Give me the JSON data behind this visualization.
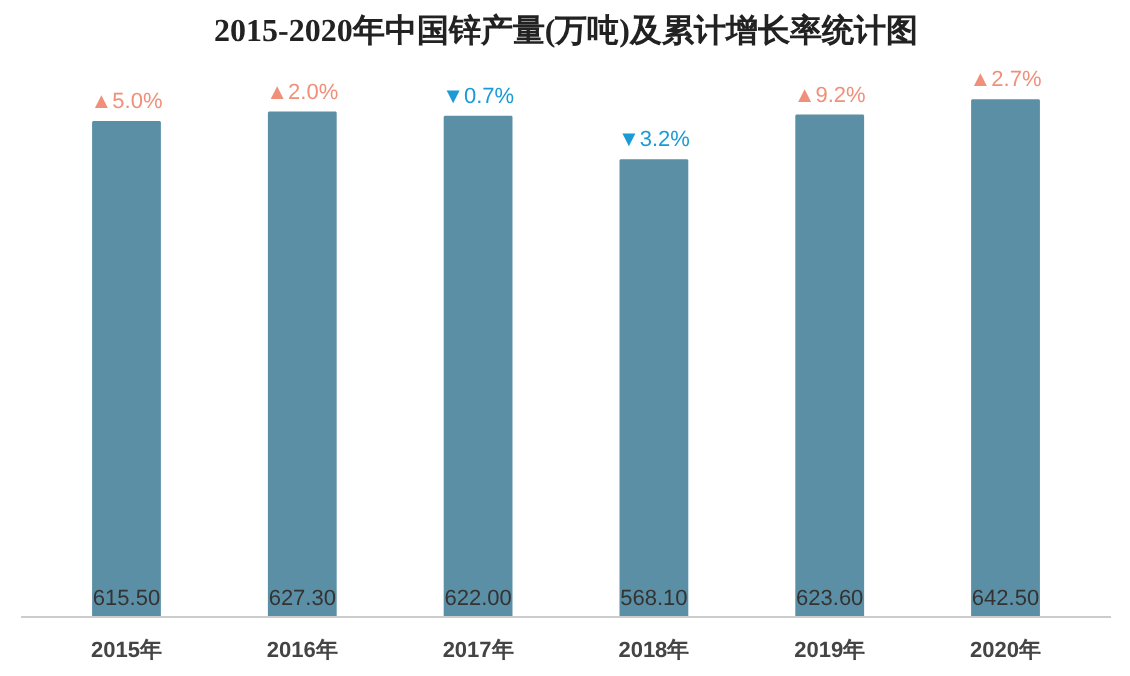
{
  "chart_data": {
    "type": "bar",
    "title": "2015-2020年中国锌产量(万吨)及累计增长率统计图",
    "categories": [
      "2015年",
      "2016年",
      "2017年",
      "2018年",
      "2019年",
      "2020年"
    ],
    "values": [
      615.5,
      627.3,
      622.0,
      568.1,
      623.6,
      642.5
    ],
    "value_labels": [
      "615.50",
      "627.30",
      "622.00",
      "568.10",
      "623.60",
      "642.50"
    ],
    "color": "#5b8fa6",
    "grid": false,
    "annotations": [
      {
        "text": "▲5.0%",
        "x": "2015年",
        "y": 615.5
      },
      {
        "text": "▲2.0%",
        "x": "2016年",
        "y": 627.3
      },
      {
        "text": "▼0.7%",
        "x": "2017年",
        "y": 622.0
      },
      {
        "text": "▼3.2%",
        "x": "2018年",
        "y": 568.1
      },
      {
        "text": "▲9.2%",
        "x": "2019年",
        "y": 623.6
      },
      {
        "text": "▲2.7%",
        "x": "2020年",
        "y": 642.5
      }
    ]
  }
}
